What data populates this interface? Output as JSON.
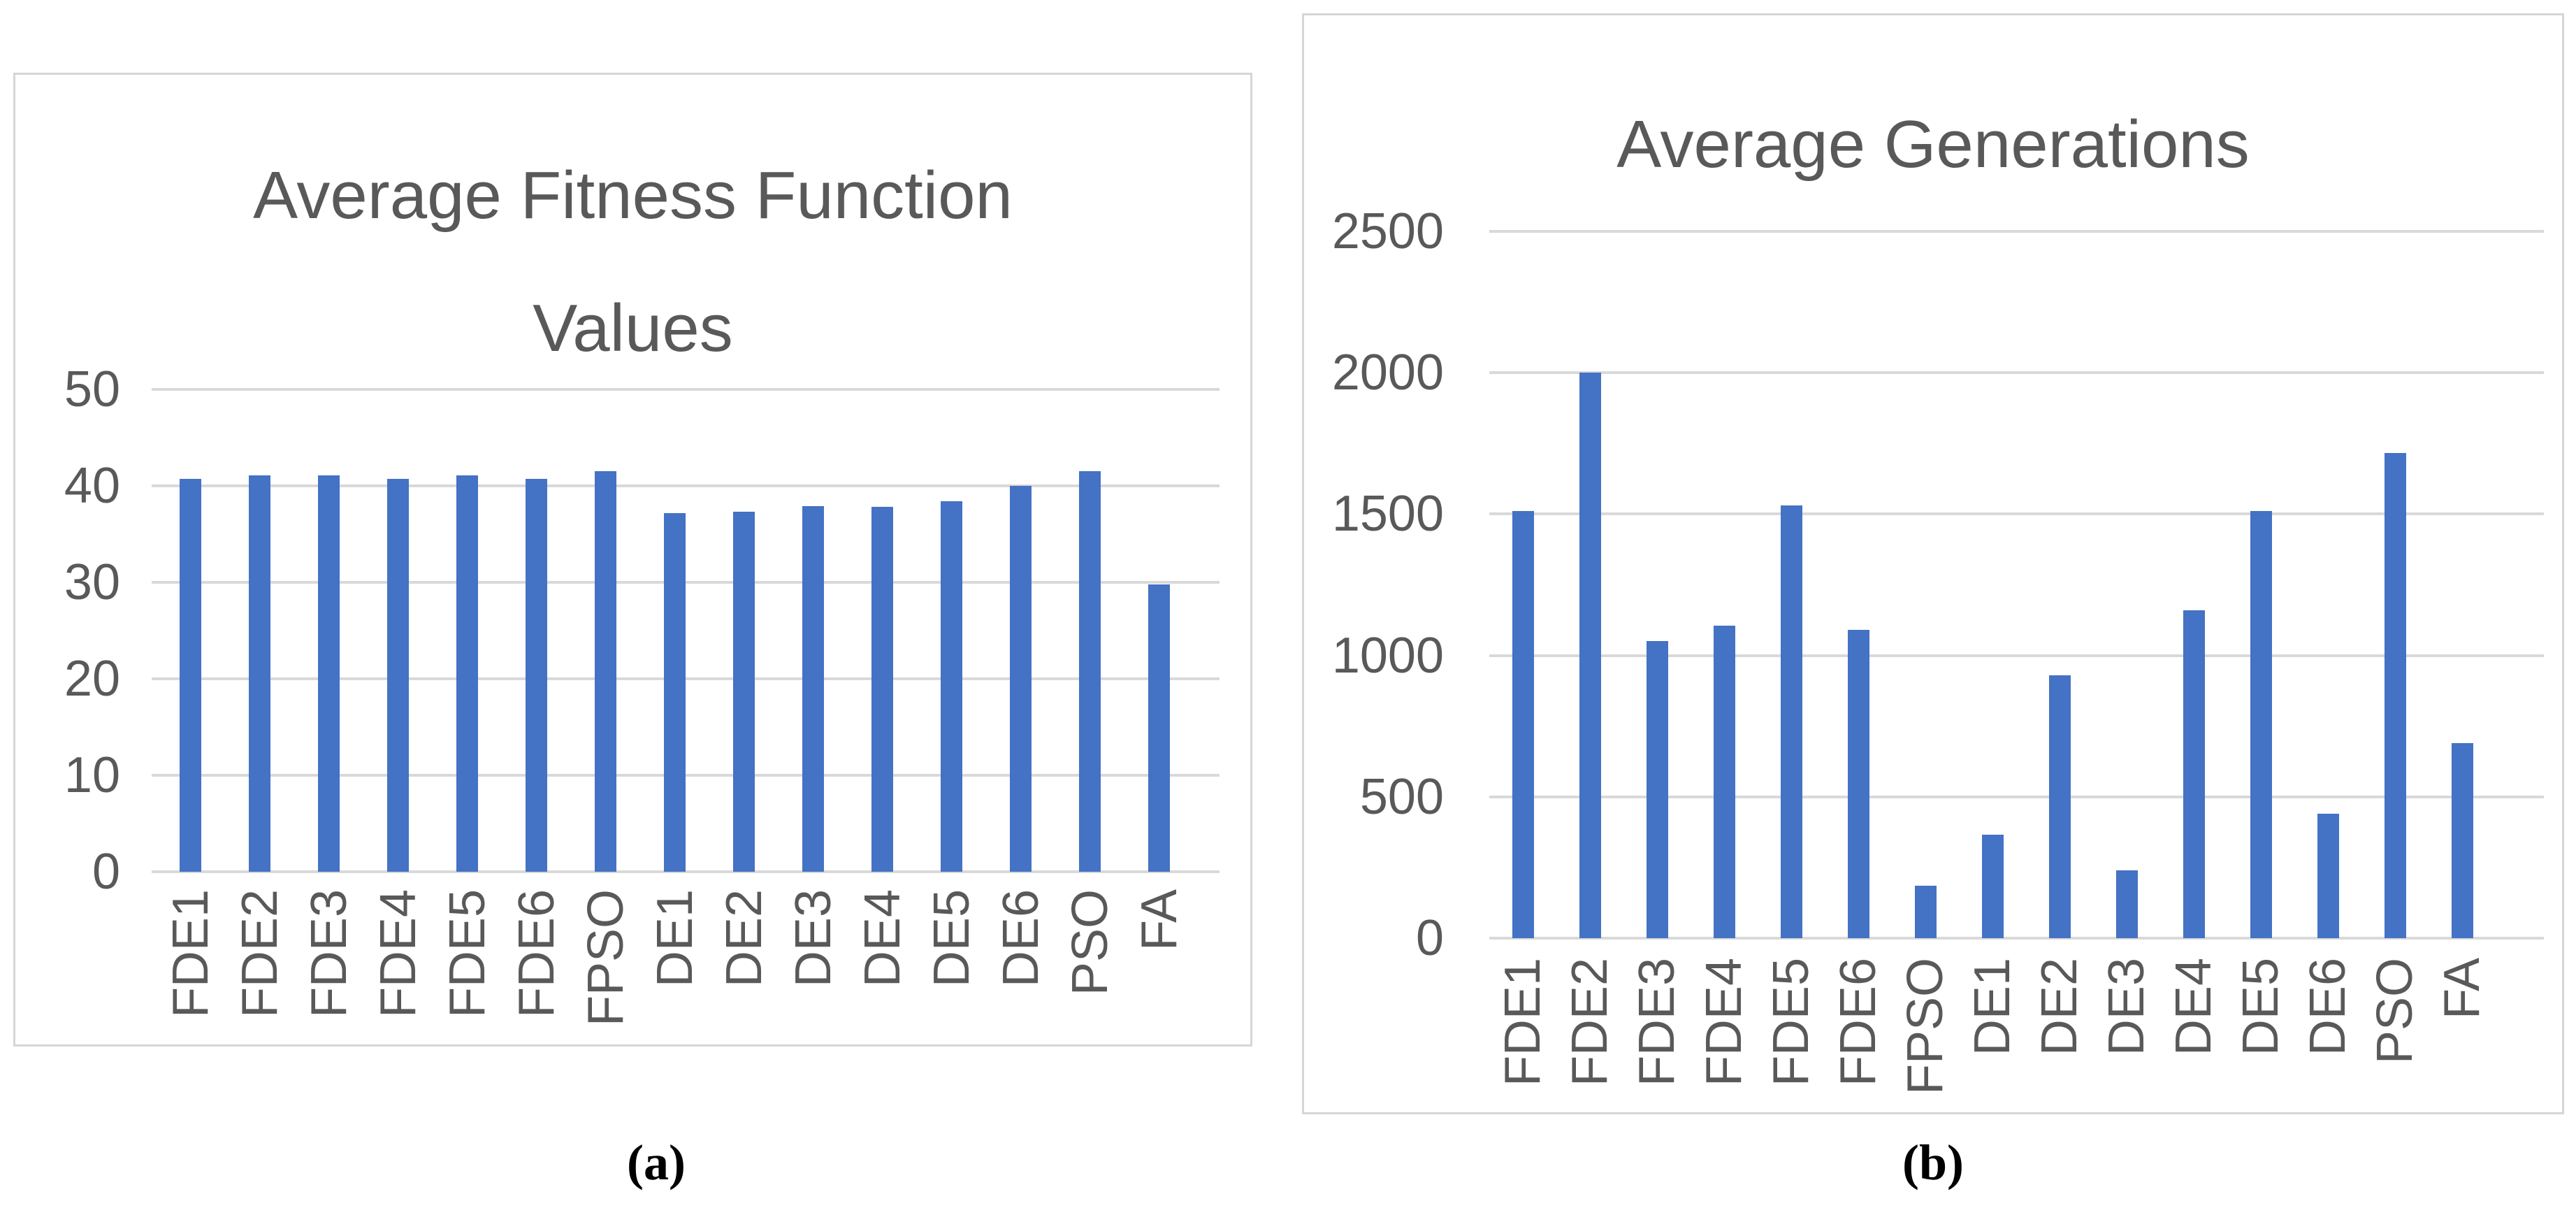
{
  "figure": {
    "panel_a_caption": "(a)",
    "panel_b_caption": "(b)"
  },
  "chart_data": [
    {
      "type": "bar",
      "title": "Average Fitness Function Values",
      "title_lines": [
        "Average Fitness Function",
        "Values"
      ],
      "categories": [
        "FDE1",
        "FDE2",
        "FDE3",
        "FDE4",
        "FDE5",
        "FDE6",
        "FPSO",
        "DE1",
        "DE2",
        "DE3",
        "DE4",
        "DE5",
        "DE6",
        "PSO",
        "FA"
      ],
      "values": [
        40.7,
        41.1,
        41.1,
        40.7,
        41.1,
        40.7,
        41.5,
        37.2,
        37.3,
        37.9,
        37.8,
        38.4,
        40.0,
        41.5,
        29.8
      ],
      "xlabel": "",
      "ylabel": "",
      "ylim": [
        0,
        50
      ],
      "yticks": [
        50,
        40,
        30,
        20,
        10,
        0
      ],
      "grid": true,
      "legend": "none",
      "bar_color": "#4472C4",
      "gridline_color": "#D9D9D9",
      "text_color": "#595959"
    },
    {
      "type": "bar",
      "title": "Average Generations",
      "title_lines": [
        "Average Generations"
      ],
      "categories": [
        "FDE1",
        "FDE2",
        "FDE3",
        "FDE4",
        "FDE5",
        "FDE6",
        "FPSO",
        "DE1",
        "DE2",
        "DE3",
        "DE4",
        "DE5",
        "DE6",
        "PSO",
        "FA"
      ],
      "values": [
        1510,
        2000,
        1050,
        1105,
        1530,
        1090,
        185,
        365,
        930,
        240,
        1160,
        1510,
        440,
        1715,
        690
      ],
      "xlabel": "",
      "ylabel": "",
      "ylim": [
        0,
        2500
      ],
      "yticks": [
        2500,
        2000,
        1500,
        1000,
        500,
        0
      ],
      "grid": true,
      "legend": "none",
      "bar_color": "#4472C4",
      "gridline_color": "#D9D9D9",
      "text_color": "#595959"
    }
  ]
}
